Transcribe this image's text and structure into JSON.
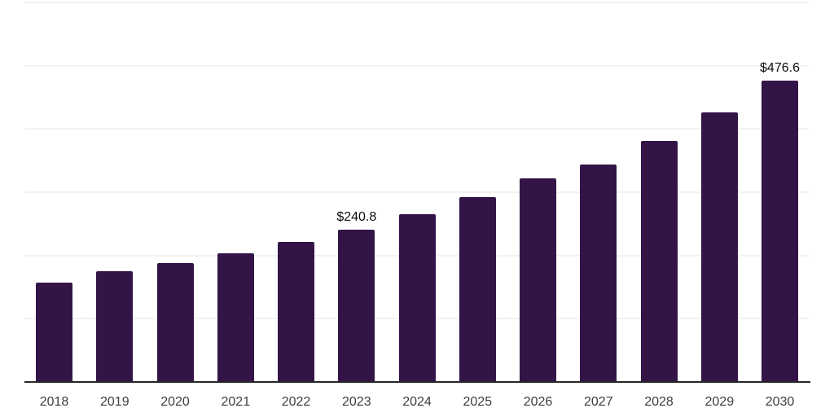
{
  "chart_data": {
    "type": "bar",
    "title": "",
    "xlabel": "",
    "ylabel": "",
    "categories": [
      "2018",
      "2019",
      "2020",
      "2021",
      "2022",
      "2023",
      "2024",
      "2025",
      "2026",
      "2027",
      "2028",
      "2029",
      "2030"
    ],
    "values": [
      157.1,
      175.1,
      188.0,
      204.1,
      221.5,
      240.8,
      265.2,
      292.3,
      321.9,
      343.8,
      381.1,
      426.2,
      476.6
    ],
    "labeled_points": [
      {
        "category": "2023",
        "label": "$240.8"
      },
      {
        "category": "2030",
        "label": "$476.6"
      }
    ],
    "ylim": [
      0,
      600
    ],
    "gridline_step": 100,
    "grid": "horizontal-only",
    "y_tick_labels_visible": false,
    "legend": "none",
    "colors": {
      "bar": "#331447",
      "axis_line": "#262626",
      "gridline": "#f2f2f2",
      "tick_label": "#3d3d3d",
      "data_label": "#0d0d0d",
      "background": "#ffffff"
    }
  }
}
